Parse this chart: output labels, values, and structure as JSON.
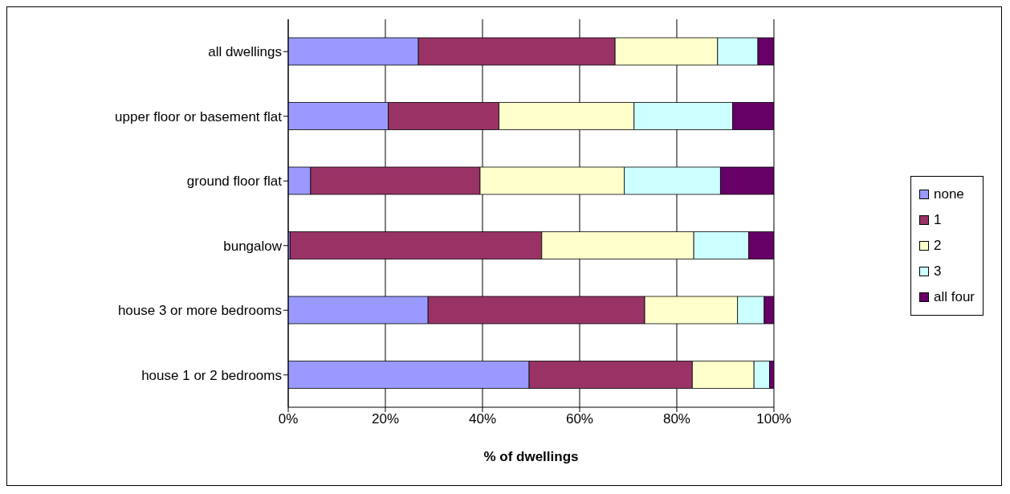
{
  "chart_data": {
    "type": "bar",
    "orientation": "horizontal",
    "stacked": true,
    "categories": [
      "all dwellings",
      "upper floor or basement flat",
      "ground floor flat",
      "bungalow",
      "house 3 or more bedrooms",
      "house 1 or 2 bedrooms"
    ],
    "series": [
      {
        "name": "none",
        "color": "#9999ff",
        "values": [
          26.8,
          20.6,
          4.6,
          0.4,
          28.8,
          49.6
        ]
      },
      {
        "name": "1",
        "color": "#993366",
        "values": [
          40.5,
          22.8,
          34.9,
          51.8,
          44.6,
          33.6
        ]
      },
      {
        "name": "2",
        "color": "#ffffcc",
        "values": [
          21.1,
          27.8,
          29.7,
          31.3,
          19.1,
          12.7
        ]
      },
      {
        "name": "3",
        "color": "#ccffff",
        "values": [
          8.3,
          20.3,
          19.8,
          11.3,
          5.5,
          3.2
        ]
      },
      {
        "name": "all four",
        "color": "#660066",
        "values": [
          3.3,
          8.5,
          11.0,
          5.2,
          2.0,
          0.9
        ]
      }
    ],
    "xlabel": "% of dwellings",
    "xlim": [
      0,
      100
    ],
    "xticks": [
      {
        "value": 0,
        "label": "0%"
      },
      {
        "value": 20,
        "label": "20%"
      },
      {
        "value": 40,
        "label": "40%"
      },
      {
        "value": 60,
        "label": "60%"
      },
      {
        "value": 80,
        "label": "80%"
      },
      {
        "value": 100,
        "label": "100%"
      }
    ],
    "grid": "x",
    "legend": "right"
  }
}
